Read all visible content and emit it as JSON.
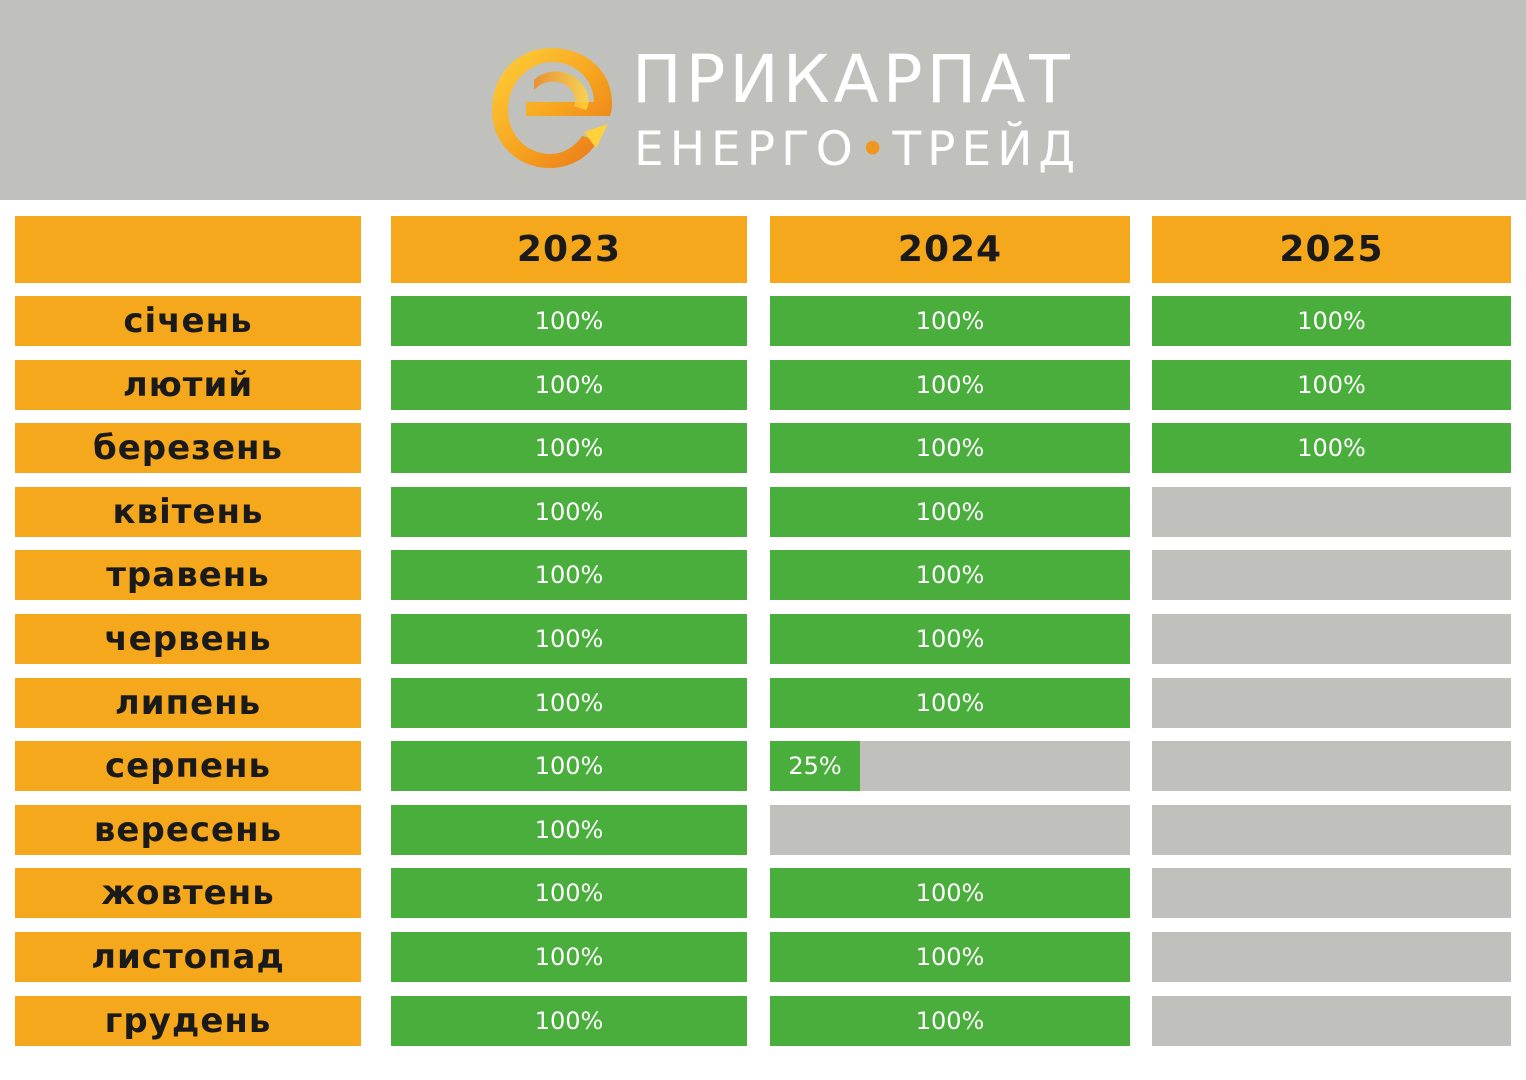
{
  "brand": {
    "line1": "ПРИКАРПАТ",
    "line2_left": "ЕНЕРГО",
    "line2_dot": "•",
    "line2_right": "ТРЕЙД",
    "colors": {
      "header_bg": "#c0c0bd",
      "accent": "#f5a81c",
      "fill": "#4aae3c",
      "empty": "#c0c0bd"
    }
  },
  "chart_data": {
    "type": "table",
    "categories": [
      "січень",
      "лютий",
      "березень",
      "квітень",
      "травень",
      "червень",
      "липень",
      "серпень",
      "вересень",
      "жовтень",
      "листопад",
      "грудень"
    ],
    "series": [
      {
        "name": "2023",
        "values": [
          100,
          100,
          100,
          100,
          100,
          100,
          100,
          100,
          100,
          100,
          100,
          100
        ],
        "labels": [
          "100%",
          "100%",
          "100%",
          "100%",
          "100%",
          "100%",
          "100%",
          "100%",
          "100%",
          "100%",
          "100%",
          "100%"
        ]
      },
      {
        "name": "2024",
        "values": [
          100,
          100,
          100,
          100,
          100,
          100,
          100,
          25,
          0,
          100,
          100,
          100
        ],
        "labels": [
          "100%",
          "100%",
          "100%",
          "100%",
          "100%",
          "100%",
          "100%",
          "25%",
          "",
          "100%",
          "100%",
          "100%"
        ]
      },
      {
        "name": "2025",
        "values": [
          100,
          100,
          100,
          0,
          0,
          0,
          0,
          0,
          0,
          0,
          0,
          0
        ],
        "labels": [
          "100%",
          "100%",
          "100%",
          "",
          "",
          "",
          "",
          "",
          "",
          "",
          "",
          ""
        ]
      }
    ]
  }
}
